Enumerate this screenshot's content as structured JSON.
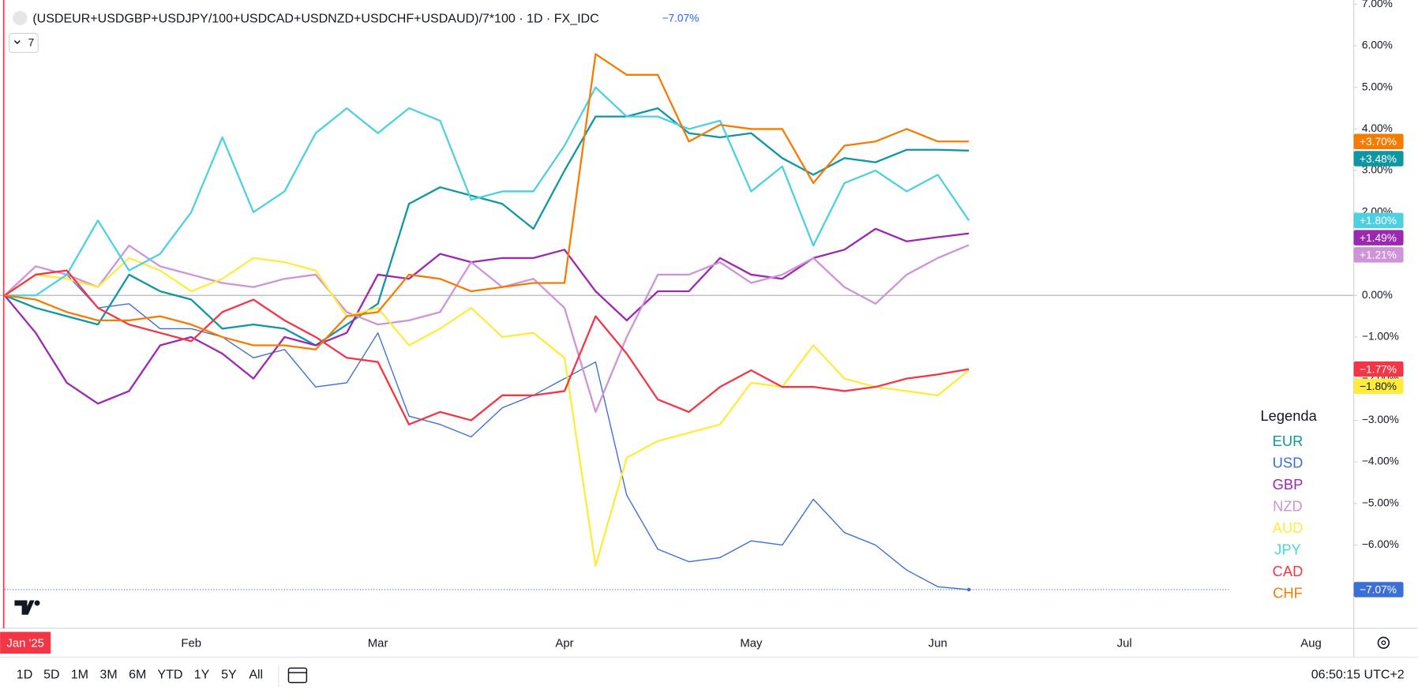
{
  "chart_data": {
    "type": "line",
    "title": "(USDEUR+USDGBP+USDJPY/100+USDCAD+USDNZD+USDCHF+USDAUD)/7*100 · 1D · FX_IDC",
    "change": "−7.07%",
    "indicator_count": "7",
    "legend_title": "Legenda",
    "legend": "right",
    "categories": [
      "Jan '25",
      null,
      null,
      null,
      null,
      null,
      "Feb",
      null,
      null,
      null,
      null,
      null,
      "Mar",
      null,
      null,
      null,
      null,
      null,
      "Apr",
      null,
      null,
      null,
      null,
      null,
      "May",
      null,
      null,
      null,
      null,
      null,
      "Jun",
      null,
      null,
      null,
      null,
      null,
      "Jul",
      null,
      null,
      null,
      null,
      null,
      "Aug",
      null
    ],
    "ylim": [
      -8,
      7.1
    ],
    "yticks": [
      {
        "value": -6,
        "label": "−6.00%"
      },
      {
        "value": -5,
        "label": "−5.00%"
      },
      {
        "value": -4,
        "label": "−4.00%"
      },
      {
        "value": -3,
        "label": "−3.00%"
      },
      {
        "value": -2,
        "label": "−2.00%"
      },
      {
        "value": -1,
        "label": "−1.00%"
      },
      {
        "value": 0,
        "label": "0.00%"
      },
      {
        "value": 1,
        "label": "1.00%"
      },
      {
        "value": 2,
        "label": "2.00%"
      },
      {
        "value": 3,
        "label": "3.00%"
      },
      {
        "value": 4,
        "label": "4.00%"
      },
      {
        "value": 5,
        "label": "5.00%"
      },
      {
        "value": 6,
        "label": "6.00%"
      },
      {
        "value": 7,
        "label": "7.00%"
      }
    ],
    "series": [
      {
        "name": "EUR",
        "color": "#0e97a3",
        "last_label": "+3.48%",
        "values": [
          0,
          -0.3,
          -0.5,
          -0.7,
          0.5,
          0.1,
          -0.1,
          -0.8,
          -0.7,
          -0.8,
          -1.2,
          -0.7,
          -0.2,
          2.2,
          2.6,
          2.4,
          2.2,
          1.6,
          3.0,
          4.3,
          4.3,
          4.5,
          3.9,
          3.8,
          3.9,
          3.3,
          2.9,
          3.3,
          3.2,
          3.5,
          3.5,
          3.48,
          null,
          null,
          null,
          null,
          null,
          null,
          null,
          null,
          null,
          null,
          null,
          null
        ]
      },
      {
        "name": "USD",
        "color": "#3b6fd6",
        "last_label": "−7.07%",
        "values": [
          0,
          0.7,
          0.5,
          -0.3,
          -0.2,
          -0.8,
          -0.8,
          -1.0,
          -1.5,
          -1.3,
          -2.2,
          -2.1,
          -0.9,
          -2.9,
          -3.1,
          -3.4,
          -2.7,
          -2.4,
          -2.0,
          -1.6,
          -4.8,
          -6.1,
          -6.4,
          -6.3,
          -5.9,
          -6.0,
          -4.9,
          -5.7,
          -6.0,
          -6.6,
          -7.0,
          -7.07,
          null,
          null,
          null,
          null,
          null,
          null,
          null,
          null,
          null,
          null,
          null,
          null
        ]
      },
      {
        "name": "GBP",
        "color": "#9c27b0",
        "last_label": "+1.49%",
        "values": [
          0,
          -0.9,
          -2.1,
          -2.6,
          -2.3,
          -1.2,
          -1.0,
          -1.4,
          -2.0,
          -1.0,
          -1.2,
          -0.9,
          0.5,
          0.4,
          1.0,
          0.8,
          0.9,
          0.9,
          1.1,
          0.1,
          -0.6,
          0.1,
          0.1,
          0.9,
          0.5,
          0.4,
          0.9,
          1.1,
          1.6,
          1.3,
          1.4,
          1.49,
          null,
          null,
          null,
          null,
          null,
          null,
          null,
          null,
          null,
          null,
          null,
          null
        ]
      },
      {
        "name": "NZD",
        "color": "#ce93d8",
        "last_label": "+1.21%",
        "values": [
          0,
          0.7,
          0.5,
          0.2,
          1.2,
          0.7,
          0.5,
          0.3,
          0.2,
          0.4,
          0.5,
          -0.4,
          -0.7,
          -0.6,
          -0.4,
          0.8,
          0.2,
          0.4,
          -0.3,
          -2.8,
          -1.0,
          0.5,
          0.5,
          0.8,
          0.3,
          0.5,
          0.9,
          0.2,
          -0.2,
          0.5,
          0.9,
          1.21,
          null,
          null,
          null,
          null,
          null,
          null,
          null,
          null,
          null,
          null,
          null,
          null
        ]
      },
      {
        "name": "AUD",
        "color": "#ffeb3b",
        "last_label": "−1.80%",
        "values": [
          0,
          0.5,
          0.4,
          0.2,
          0.9,
          0.6,
          0.1,
          0.4,
          0.9,
          0.8,
          0.6,
          -0.5,
          -0.3,
          -1.2,
          -0.8,
          -0.3,
          -1.0,
          -0.9,
          -1.5,
          -6.5,
          -3.9,
          -3.5,
          -3.3,
          -3.1,
          -2.1,
          -2.2,
          -1.2,
          -2.0,
          -2.2,
          -2.3,
          -2.4,
          -1.8,
          null,
          null,
          null,
          null,
          null,
          null,
          null,
          null,
          null,
          null,
          null,
          null
        ]
      },
      {
        "name": "JPY",
        "color": "#4dd0e1",
        "last_label": "+1.80%",
        "values": [
          0,
          0,
          0.5,
          1.8,
          0.6,
          1.0,
          2.0,
          3.8,
          2.0,
          2.5,
          3.9,
          4.5,
          3.9,
          4.5,
          4.2,
          2.3,
          2.5,
          2.5,
          3.6,
          5.0,
          4.3,
          4.3,
          4.0,
          4.2,
          2.5,
          3.1,
          1.2,
          2.7,
          3.0,
          2.5,
          2.9,
          1.8,
          null,
          null,
          null,
          null,
          null,
          null,
          null,
          null,
          null,
          null,
          null,
          null
        ]
      },
      {
        "name": "CAD",
        "color": "#f23645",
        "last_label": "−1.77%",
        "values": [
          0,
          0.5,
          0.6,
          -0.3,
          -0.7,
          -0.9,
          -1.1,
          -0.4,
          -0.1,
          -0.6,
          -1.0,
          -1.5,
          -1.6,
          -3.1,
          -2.8,
          -3.0,
          -2.4,
          -2.4,
          -2.3,
          -0.5,
          -1.4,
          -2.5,
          -2.8,
          -2.2,
          -1.8,
          -2.2,
          -2.2,
          -2.3,
          -2.2,
          -2.0,
          -1.9,
          -1.77,
          null,
          null,
          null,
          null,
          null,
          null,
          null,
          null,
          null,
          null,
          null,
          null
        ]
      },
      {
        "name": "CHF",
        "color": "#f57c00",
        "last_label": "+3.70%",
        "values": [
          0,
          -0.1,
          -0.4,
          -0.6,
          -0.6,
          -0.5,
          -0.7,
          -1.0,
          -1.2,
          -1.2,
          -1.3,
          -0.5,
          -0.4,
          0.5,
          0.4,
          0.1,
          0.2,
          0.3,
          0.3,
          5.8,
          5.3,
          5.3,
          3.7,
          4.1,
          4.0,
          4.0,
          2.7,
          3.6,
          3.7,
          4.0,
          3.7,
          3.7,
          null,
          null,
          null,
          null,
          null,
          null,
          null,
          null,
          null,
          null,
          null,
          null
        ]
      }
    ]
  },
  "ui": {
    "ranges": [
      "1D",
      "5D",
      "1M",
      "3M",
      "6M",
      "YTD",
      "1Y",
      "5Y",
      "All"
    ],
    "clock": "06:50:15 UTC+2"
  }
}
